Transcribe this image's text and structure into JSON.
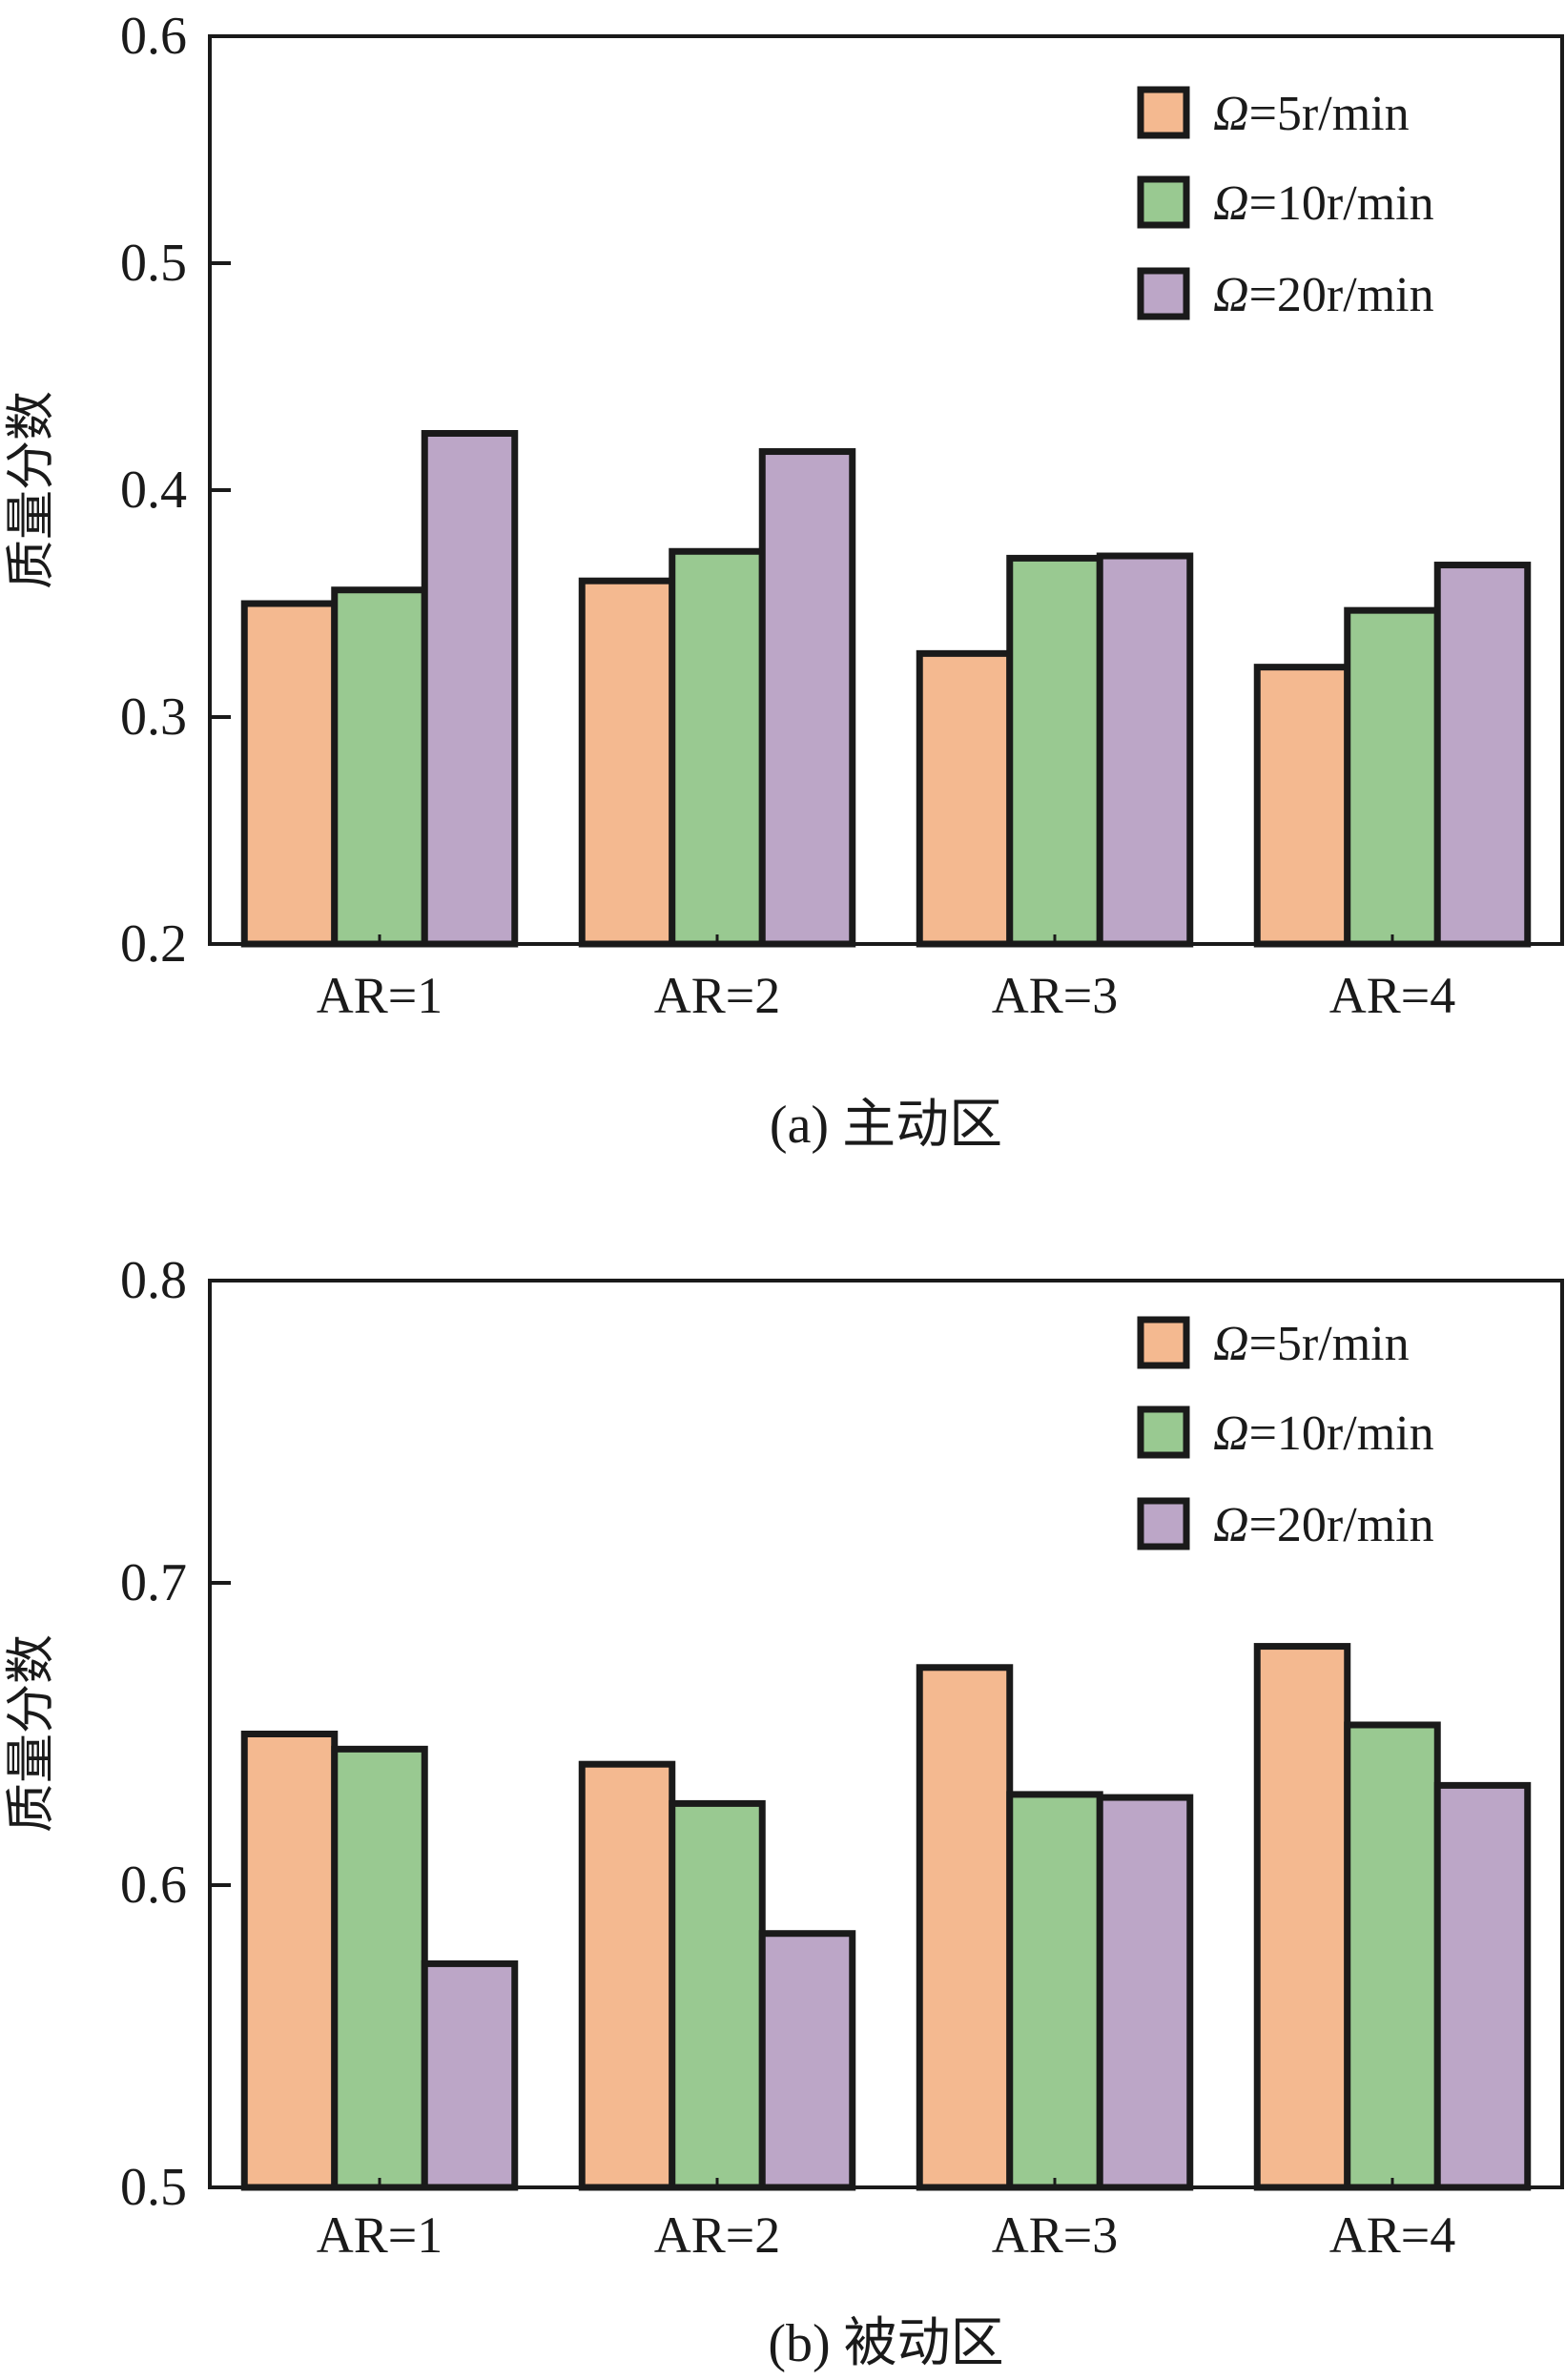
{
  "chart_data": [
    {
      "id": "a",
      "type": "bar",
      "title": "(a) 主动区",
      "xlabel": "",
      "ylabel": "质量分数",
      "ylim": [
        0.2,
        0.6
      ],
      "yticks": [
        "0.2",
        "0.3",
        "0.4",
        "0.5",
        "0.6"
      ],
      "categories": [
        "AR=1",
        "AR=2",
        "AR=3",
        "AR=4"
      ],
      "legend_position": "top-right",
      "grid": false,
      "series": [
        {
          "name": "Ω=5r/min",
          "omega": "Ω",
          "rest": "=5r/min",
          "color": "#F4B990",
          "values": [
            0.35,
            0.36,
            0.328,
            0.322
          ]
        },
        {
          "name": "Ω=10r/min",
          "omega": "Ω",
          "rest": "=10r/min",
          "color": "#99C991",
          "values": [
            0.356,
            0.373,
            0.37,
            0.347
          ]
        },
        {
          "name": "Ω=20r/min",
          "omega": "Ω",
          "rest": "=20r/min",
          "color": "#BCA6C7",
          "values": [
            0.425,
            0.417,
            0.371,
            0.367
          ]
        }
      ]
    },
    {
      "id": "b",
      "type": "bar",
      "title": "(b) 被动区",
      "xlabel": "",
      "ylabel": "质量分数",
      "ylim": [
        0.5,
        0.8
      ],
      "yticks": [
        "0.5",
        "0.6",
        "0.7",
        "0.8"
      ],
      "categories": [
        "AR=1",
        "AR=2",
        "AR=3",
        "AR=4"
      ],
      "legend_position": "top-right",
      "grid": false,
      "series": [
        {
          "name": "Ω=5r/min",
          "omega": "Ω",
          "rest": "=5r/min",
          "color": "#F4B990",
          "values": [
            0.65,
            0.64,
            0.672,
            0.679
          ]
        },
        {
          "name": "Ω=10r/min",
          "omega": "Ω",
          "rest": "=10r/min",
          "color": "#99C991",
          "values": [
            0.645,
            0.627,
            0.63,
            0.653
          ]
        },
        {
          "name": "Ω=20r/min",
          "omega": "Ω",
          "rest": "=20r/min",
          "color": "#BCA6C7",
          "values": [
            0.574,
            0.584,
            0.629,
            0.633
          ]
        }
      ]
    }
  ],
  "colors": {
    "axis": "#1a1a1a",
    "bar_stroke": "#1a1a1a"
  }
}
